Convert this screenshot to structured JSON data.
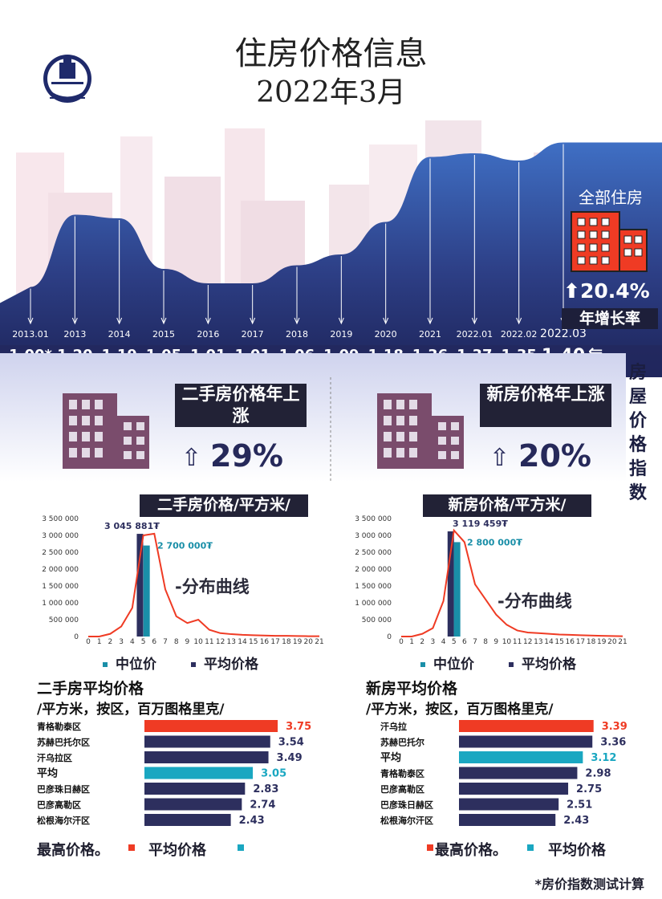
{
  "header": {
    "title": "住房价格信息",
    "subtitle": "2022年3月"
  },
  "colors": {
    "navy": "#2d2f5e",
    "teal": "#1aa7c1",
    "red": "#ef3b24",
    "dark_label": "#222236",
    "wave": "#3b61b0"
  },
  "index_panel": {
    "label": "全部住房",
    "growth": "20.4%",
    "growth_label": "年增长率",
    "side_label": "房屋价格指数",
    "arrow_icon": "left-arrow-icon"
  },
  "index_summary": {
    "secondhand": {
      "label": "二手房价格年上涨",
      "value": "29%"
    },
    "new": {
      "label": "新房价格年上涨",
      "value": "20%"
    }
  },
  "chart_data": [
    {
      "type": "area",
      "title": "",
      "categories": [
        "2013.01",
        "2013",
        "2014",
        "2015",
        "2016",
        "2017",
        "2018",
        "2019",
        "2020",
        "2021",
        "2022.01",
        "2022.02",
        "2022.03"
      ],
      "values": [
        1.0,
        1.2,
        1.19,
        1.05,
        1.01,
        1.01,
        1.06,
        1.09,
        1.18,
        1.36,
        1.37,
        1.35,
        1.4
      ],
      "value_labels": [
        "1.00*",
        "1.20",
        "1.19",
        "1.05",
        "1.01",
        "1.01",
        "1.06",
        "1.09",
        "1.18",
        "1.36",
        "1.37",
        "1.35",
        "1.40"
      ],
      "ylim": [
        0.85,
        1.45
      ]
    },
    {
      "type": "bar",
      "title": "二手房价格/平方米/",
      "x": [
        0,
        1,
        2,
        3,
        4,
        5,
        6,
        7,
        8,
        9,
        10,
        11,
        12,
        13,
        14,
        15,
        16,
        17,
        18,
        19,
        20,
        21
      ],
      "curve": [
        0,
        0,
        80000,
        300000,
        850000,
        3000000,
        3050000,
        1400000,
        600000,
        400000,
        500000,
        200000,
        100000,
        70000,
        50000,
        40000,
        30000,
        20000,
        20000,
        15000,
        10000,
        10000
      ],
      "bars": [
        {
          "name": "平均价格",
          "x": 4.7,
          "value": 3045881,
          "label": "3 045 881₮"
        },
        {
          "name": "中位价",
          "x": 5.3,
          "value": 2700000,
          "label": "2 700 000₮"
        }
      ],
      "yticks": [
        "3 500 000",
        "3 000 000",
        "2 500 000",
        "2 000 000",
        "1 500 000",
        "1 000 000",
        "500 000",
        "0"
      ],
      "ylim": [
        0,
        3500000
      ],
      "annotation": "-分布曲线",
      "legend": [
        "中位价",
        "平均价格"
      ]
    },
    {
      "type": "bar",
      "title": "新房价格/平方米/",
      "x": [
        0,
        1,
        2,
        3,
        4,
        5,
        6,
        7,
        8,
        9,
        10,
        11,
        12,
        13,
        14,
        15,
        16,
        17,
        18,
        19,
        20,
        21
      ],
      "curve": [
        0,
        0,
        80000,
        250000,
        1050000,
        3150000,
        2800000,
        1550000,
        1100000,
        650000,
        350000,
        180000,
        120000,
        100000,
        80000,
        60000,
        50000,
        40000,
        30000,
        20000,
        15000,
        10000
      ],
      "bars": [
        {
          "name": "平均价格",
          "x": 4.7,
          "value": 3119459,
          "label": "3 119 459₮"
        },
        {
          "name": "中位价",
          "x": 5.3,
          "value": 2800000,
          "label": "2 800 000₮"
        }
      ],
      "yticks": [
        "3 500 000",
        "3 000 000",
        "2 500 000",
        "2 000 000",
        "1 500 000",
        "1 000 000",
        "500 000",
        "0"
      ],
      "ylim": [
        0,
        3500000
      ],
      "annotation": "-分布曲线",
      "legend": [
        "中位价",
        "平均价格"
      ]
    },
    {
      "type": "bar",
      "orientation": "horizontal",
      "title": "二手房平均价格",
      "subtitle": "/平方米，按区，百万图格里克/",
      "categories": [
        "青格勒泰区",
        "苏赫巴托尔区",
        "汗乌拉区",
        "平均",
        "巴彦珠日赫区",
        "巴彦高勒区",
        "松根海尔汗区"
      ],
      "values": [
        3.75,
        3.54,
        3.49,
        3.05,
        2.83,
        2.74,
        2.43
      ],
      "highlight": {
        "max": 0,
        "average": 3
      },
      "xlim": [
        0,
        4.2
      ]
    },
    {
      "type": "bar",
      "orientation": "horizontal",
      "title": "新房平均价格",
      "subtitle": "/平方米，按区，百万图格里克/",
      "categories": [
        "汗乌拉",
        "苏赫巴托尔",
        "平均",
        "青格勒泰区",
        "巴彦高勒区",
        "巴彦珠日赫区",
        "松根海尔汗区"
      ],
      "values": [
        3.39,
        3.36,
        3.12,
        2.98,
        2.75,
        2.51,
        2.43
      ],
      "highlight": {
        "max": 0,
        "average": 2
      },
      "xlim": [
        0,
        3.8
      ]
    }
  ],
  "legends": {
    "max_label": "最高价格。",
    "avg_label": "平均价格"
  },
  "footnote": "*房价指数测试计算"
}
